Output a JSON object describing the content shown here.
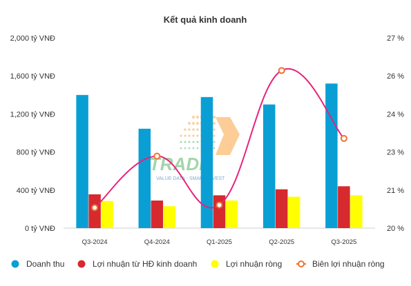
{
  "chart_data": {
    "type": "bar",
    "title": "Kết quả kinh doanh",
    "categories": [
      "Q3-2024",
      "Q4-2024",
      "Q1-2025",
      "Q2-2025",
      "Q3-2025"
    ],
    "series": [
      {
        "name": "Doanh thu",
        "kind": "bar",
        "axis": "left",
        "color": "#0a9fd4",
        "values": [
          1400,
          1045,
          1378,
          1300,
          1520
        ]
      },
      {
        "name": "Lợi nhuận từ HĐ kinh doanh",
        "kind": "bar",
        "axis": "left",
        "color": "#d62a2e",
        "values": [
          355,
          290,
          345,
          408,
          440
        ]
      },
      {
        "name": "Lợi nhuận ròng",
        "kind": "bar",
        "axis": "left",
        "color": "#ffff00",
        "values": [
          285,
          230,
          290,
          330,
          345
        ]
      },
      {
        "name": "Biên lợi nhuận ròng",
        "kind": "line",
        "axis": "right",
        "color": "#e8217a",
        "marker_color": "#f07030",
        "values": [
          20.75,
          22.65,
          20.85,
          25.8,
          23.3
        ]
      }
    ],
    "y_left": {
      "ticks": [
        "0 tỷ VNĐ",
        "400 tỷ VNĐ",
        "800 tỷ VNĐ",
        "1,200 tỷ VNĐ",
        "1,600 tỷ VNĐ",
        "2,000 tỷ VNĐ"
      ],
      "ylim": [
        0,
        2000
      ]
    },
    "y_right": {
      "ticks": [
        "20 %",
        "21 %",
        "23 %",
        "24 %",
        "26 %",
        "27 %"
      ],
      "ylim": [
        20,
        27
      ]
    },
    "grid": false,
    "legend_position": "bottom"
  },
  "watermark": {
    "text": "I-TRADE",
    "tagline": "VALUE DATA - SMART INVEST",
    "colors": {
      "green": "#3aa64a",
      "orange": "#f7941d",
      "blue": "#1e73be"
    }
  }
}
